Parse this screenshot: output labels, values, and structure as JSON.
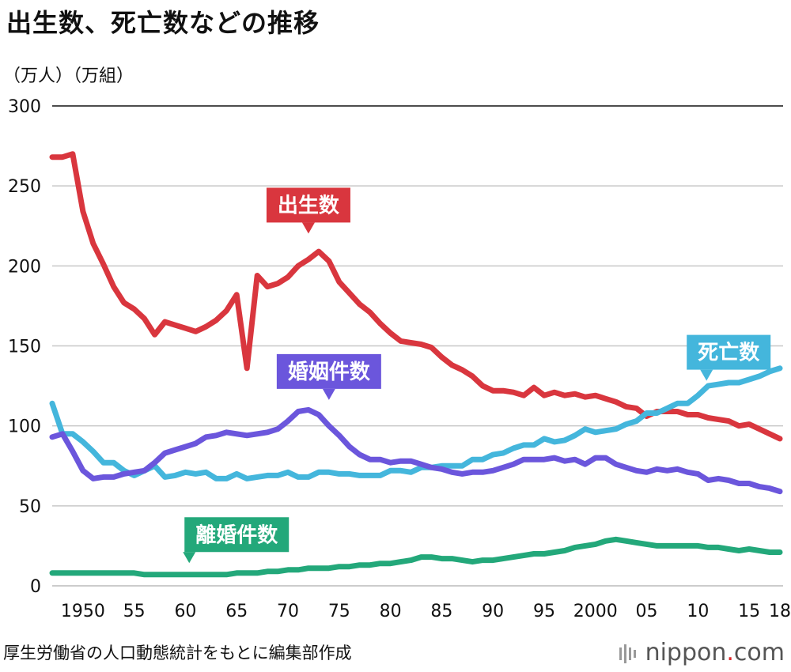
{
  "chart_data": {
    "type": "line",
    "title": "出生数、死亡数などの推移",
    "ylabel": "（万人）（万組）",
    "ylim": [
      0,
      300
    ],
    "yticks": [
      0,
      50,
      100,
      150,
      200,
      250,
      300
    ],
    "xticks": [
      {
        "x": 1950,
        "label": "1950"
      },
      {
        "x": 1955,
        "label": "55"
      },
      {
        "x": 1960,
        "label": "60"
      },
      {
        "x": 1965,
        "label": "65"
      },
      {
        "x": 1970,
        "label": "70"
      },
      {
        "x": 1975,
        "label": "75"
      },
      {
        "x": 1980,
        "label": "80"
      },
      {
        "x": 1985,
        "label": "85"
      },
      {
        "x": 1990,
        "label": "90"
      },
      {
        "x": 1995,
        "label": "95"
      },
      {
        "x": 2000,
        "label": "2000"
      },
      {
        "x": 2005,
        "label": "05"
      },
      {
        "x": 2010,
        "label": "10"
      },
      {
        "x": 2015,
        "label": "15"
      },
      {
        "x": 2018,
        "label": "18"
      }
    ],
    "xlim": [
      1947,
      2018
    ],
    "grid": true,
    "series": [
      {
        "name": "出生数",
        "color": "#d9363e",
        "label_x": 1972,
        "label_y": 238,
        "x": [
          1947,
          1948,
          1949,
          1950,
          1951,
          1952,
          1953,
          1954,
          1955,
          1956,
          1957,
          1958,
          1959,
          1960,
          1961,
          1962,
          1963,
          1964,
          1965,
          1966,
          1967,
          1968,
          1969,
          1970,
          1971,
          1972,
          1973,
          1974,
          1975,
          1976,
          1977,
          1978,
          1979,
          1980,
          1981,
          1982,
          1983,
          1984,
          1985,
          1986,
          1987,
          1988,
          1989,
          1990,
          1991,
          1992,
          1993,
          1994,
          1995,
          1996,
          1997,
          1998,
          1999,
          2000,
          2001,
          2002,
          2003,
          2004,
          2005,
          2006,
          2007,
          2008,
          2009,
          2010,
          2011,
          2012,
          2013,
          2014,
          2015,
          2016,
          2017,
          2018
        ],
        "values": [
          268,
          268,
          270,
          234,
          214,
          201,
          187,
          177,
          173,
          167,
          157,
          165,
          163,
          161,
          159,
          162,
          166,
          172,
          182,
          136,
          194,
          187,
          189,
          193,
          200,
          204,
          209,
          203,
          190,
          183,
          176,
          171,
          164,
          158,
          153,
          152,
          151,
          149,
          143,
          138,
          135,
          131,
          125,
          122,
          122,
          121,
          119,
          124,
          119,
          121,
          119,
          120,
          118,
          119,
          117,
          115,
          112,
          111,
          106,
          109,
          109,
          109,
          107,
          107,
          105,
          104,
          103,
          100,
          101,
          98,
          95,
          92
        ]
      },
      {
        "name": "死亡数",
        "color": "#44b6dc",
        "label_x": 2013,
        "label_y": 146,
        "x": [
          1947,
          1948,
          1949,
          1950,
          1951,
          1952,
          1953,
          1954,
          1955,
          1956,
          1957,
          1958,
          1959,
          1960,
          1961,
          1962,
          1963,
          1964,
          1965,
          1966,
          1967,
          1968,
          1969,
          1970,
          1971,
          1972,
          1973,
          1974,
          1975,
          1976,
          1977,
          1978,
          1979,
          1980,
          1981,
          1982,
          1983,
          1984,
          1985,
          1986,
          1987,
          1988,
          1989,
          1990,
          1991,
          1992,
          1993,
          1994,
          1995,
          1996,
          1997,
          1998,
          1999,
          2000,
          2001,
          2002,
          2003,
          2004,
          2005,
          2006,
          2007,
          2008,
          2009,
          2010,
          2011,
          2012,
          2013,
          2014,
          2015,
          2016,
          2017,
          2018
        ],
        "values": [
          114,
          95,
          95,
          90,
          84,
          77,
          77,
          72,
          69,
          72,
          75,
          68,
          69,
          71,
          70,
          71,
          67,
          67,
          70,
          67,
          68,
          69,
          69,
          71,
          68,
          68,
          71,
          71,
          70,
          70,
          69,
          69,
          69,
          72,
          72,
          71,
          74,
          74,
          75,
          75,
          75,
          79,
          79,
          82,
          83,
          86,
          88,
          88,
          92,
          90,
          91,
          94,
          98,
          96,
          97,
          98,
          101,
          103,
          108,
          108,
          111,
          114,
          114,
          119,
          125,
          126,
          127,
          127,
          129,
          131,
          134,
          136
        ]
      },
      {
        "name": "婚姻件数",
        "color": "#6b56dc",
        "label_x": 1974,
        "label_y": 134,
        "x": [
          1947,
          1948,
          1949,
          1950,
          1951,
          1952,
          1953,
          1954,
          1955,
          1956,
          1957,
          1958,
          1959,
          1960,
          1961,
          1962,
          1963,
          1964,
          1965,
          1966,
          1967,
          1968,
          1969,
          1970,
          1971,
          1972,
          1973,
          1974,
          1975,
          1976,
          1977,
          1978,
          1979,
          1980,
          1981,
          1982,
          1983,
          1984,
          1985,
          1986,
          1987,
          1988,
          1989,
          1990,
          1991,
          1992,
          1993,
          1994,
          1995,
          1996,
          1997,
          1998,
          1999,
          2000,
          2001,
          2002,
          2003,
          2004,
          2005,
          2006,
          2007,
          2008,
          2009,
          2010,
          2011,
          2012,
          2013,
          2014,
          2015,
          2016,
          2017,
          2018
        ],
        "values": [
          93,
          95,
          84,
          72,
          67,
          68,
          68,
          70,
          71,
          72,
          77,
          83,
          85,
          87,
          89,
          93,
          94,
          96,
          95,
          94,
          95,
          96,
          98,
          103,
          109,
          110,
          107,
          100,
          94,
          87,
          82,
          79,
          79,
          77,
          78,
          78,
          76,
          74,
          73,
          71,
          70,
          71,
          71,
          72,
          74,
          76,
          79,
          79,
          79,
          80,
          78,
          79,
          76,
          80,
          80,
          76,
          74,
          72,
          71,
          73,
          72,
          73,
          71,
          70,
          66,
          67,
          66,
          64,
          64,
          62,
          61,
          59
        ]
      },
      {
        "name": "離婚件数",
        "color": "#23a87a",
        "label_x": 1965,
        "label_y": 32,
        "x": [
          1947,
          1948,
          1949,
          1950,
          1951,
          1952,
          1953,
          1954,
          1955,
          1956,
          1957,
          1958,
          1959,
          1960,
          1961,
          1962,
          1963,
          1964,
          1965,
          1966,
          1967,
          1968,
          1969,
          1970,
          1971,
          1972,
          1973,
          1974,
          1975,
          1976,
          1977,
          1978,
          1979,
          1980,
          1981,
          1982,
          1983,
          1984,
          1985,
          1986,
          1987,
          1988,
          1989,
          1990,
          1991,
          1992,
          1993,
          1994,
          1995,
          1996,
          1997,
          1998,
          1999,
          2000,
          2001,
          2002,
          2003,
          2004,
          2005,
          2006,
          2007,
          2008,
          2009,
          2010,
          2011,
          2012,
          2013,
          2014,
          2015,
          2016,
          2017,
          2018
        ],
        "values": [
          8,
          8,
          8,
          8,
          8,
          8,
          8,
          8,
          8,
          7,
          7,
          7,
          7,
          7,
          7,
          7,
          7,
          7,
          8,
          8,
          8,
          9,
          9,
          10,
          10,
          11,
          11,
          11,
          12,
          12,
          13,
          13,
          14,
          14,
          15,
          16,
          18,
          18,
          17,
          17,
          16,
          15,
          16,
          16,
          17,
          18,
          19,
          20,
          20,
          21,
          22,
          24,
          25,
          26,
          28,
          29,
          28,
          27,
          26,
          25,
          25,
          25,
          25,
          25,
          24,
          24,
          23,
          22,
          23,
          22,
          21,
          21
        ]
      }
    ]
  },
  "source": "厚生労働省の人口動態統計をもとに編集部作成",
  "brand": {
    "name": "nippon",
    "suffix": ".com",
    "dot": "."
  }
}
